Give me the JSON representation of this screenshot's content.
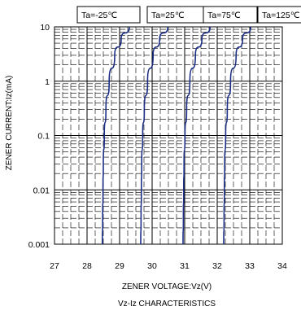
{
  "chart_data": {
    "type": "line",
    "subtitle": "Vz-Iz CHARACTERISTICS",
    "xlabel": "ZENER VOLTAGE:Vz(V)",
    "ylabel": "ZENER CURRENT:Iz(mA)",
    "xlim": [
      27,
      34
    ],
    "ylim": [
      0.001,
      10
    ],
    "yscale": "log",
    "x_ticks": [
      "27",
      "28",
      "29",
      "30",
      "31",
      "32",
      "33",
      "34"
    ],
    "y_ticks": [
      "0.001",
      "0.01",
      "0.1",
      "1",
      "10"
    ],
    "grid": true,
    "legend_position": "top",
    "colors": {
      "line": "#1c2f86",
      "grid": "#000000"
    },
    "series": [
      {
        "name": "Ta=-25℃",
        "x": [
          28.47,
          28.48,
          28.49,
          28.5,
          28.53,
          28.58,
          28.68,
          28.85,
          29.05,
          29.3
        ],
        "y": [
          0.001,
          0.003,
          0.01,
          0.03,
          0.1,
          0.3,
          1,
          3,
          6,
          10
        ]
      },
      {
        "name": "Ta=25℃",
        "x": [
          29.65,
          29.66,
          29.67,
          29.68,
          29.71,
          29.76,
          29.86,
          30.03,
          30.23,
          30.48
        ],
        "y": [
          0.001,
          0.003,
          0.01,
          0.03,
          0.1,
          0.3,
          1,
          3,
          6,
          10
        ]
      },
      {
        "name": "Ta=75℃",
        "x": [
          30.95,
          30.96,
          30.97,
          30.98,
          31.01,
          31.06,
          31.16,
          31.33,
          31.53,
          31.78
        ],
        "y": [
          0.001,
          0.003,
          0.01,
          0.03,
          0.1,
          0.3,
          1,
          3,
          6,
          10
        ]
      },
      {
        "name": "Ta=125℃",
        "x": [
          32.2,
          32.21,
          32.22,
          32.23,
          32.26,
          32.31,
          32.41,
          32.58,
          32.78,
          33.03
        ],
        "y": [
          0.001,
          0.003,
          0.01,
          0.03,
          0.1,
          0.3,
          1,
          3,
          6,
          10
        ]
      }
    ]
  }
}
